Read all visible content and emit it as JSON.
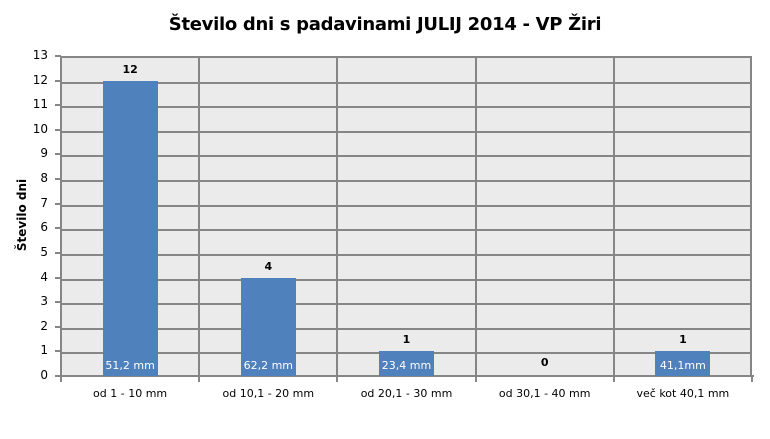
{
  "chart_data": {
    "type": "bar",
    "title": "Število dni s padavinami  JULIJ 2014 - VP Žiri",
    "xlabel": "",
    "ylabel": "Število dni",
    "ylim": [
      0,
      13
    ],
    "yticks": [
      0,
      1,
      2,
      3,
      4,
      5,
      6,
      7,
      8,
      9,
      10,
      11,
      12,
      13
    ],
    "grid": true,
    "legend": "none",
    "categories": [
      "od 1 - 10 mm",
      "od 10,1 - 20 mm",
      "od 20,1 - 30 mm",
      "od 30,1 - 40 mm",
      "več kot 40,1 mm"
    ],
    "values": [
      12,
      4,
      1,
      0,
      1
    ],
    "value_labels": [
      "12",
      "4",
      "1",
      "0",
      "1"
    ],
    "bar_annotations": [
      "51,2 mm",
      "62,2 mm",
      "23,4 mm",
      "",
      "41,1mm"
    ],
    "bar_color": "#4f81bd",
    "plot_background": "#ebebeb",
    "grid_color": "#868686"
  }
}
